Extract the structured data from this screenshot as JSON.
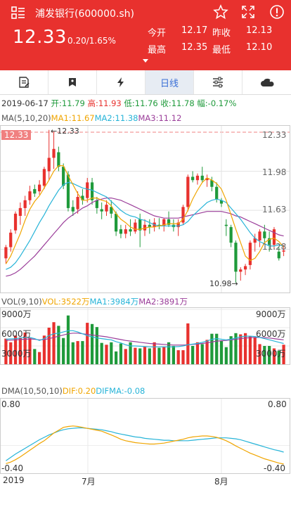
{
  "header": {
    "title": "浦发银行(600000.sh)",
    "price": "12.33",
    "change": "0.20/1.65%",
    "stats": [
      {
        "label": "今开",
        "value": "12.17"
      },
      {
        "label": "昨收",
        "value": "12.13"
      },
      {
        "label": "最高",
        "value": "12.35"
      },
      {
        "label": "最低",
        "value": "12.10"
      }
    ],
    "bg_color": "#e8312e"
  },
  "toolbar": {
    "tabs": [
      {
        "icon": "edit-note-icon",
        "label": ""
      },
      {
        "icon": "bookmark-icon",
        "label": ""
      },
      {
        "icon": "lightning-icon",
        "label": ""
      },
      {
        "icon": "",
        "label": "日线"
      },
      {
        "icon": "sliders-icon",
        "label": ""
      },
      {
        "icon": "cloud-icon",
        "label": ""
      }
    ],
    "active_label": "日线"
  },
  "info": {
    "date": "2019-06-17",
    "open": "开:11.79",
    "high": "高:11.93",
    "low": "低:11.76",
    "close": "收:11.78",
    "amp": "幅:-0.17%"
  },
  "ma": {
    "label": "MA(5,10,20)",
    "ma1": "MA1:11.67",
    "ma2": "MA2:11.38",
    "ma3": "MA3:11.12"
  },
  "price_axis": {
    "labels": [
      "12.33",
      "11.98",
      "11.63",
      "11.28"
    ],
    "current_tag": "12.33",
    "max_note": "←12.33",
    "min_note": "10.98→"
  },
  "vol": {
    "label": "VOL(9,10)",
    "vol": "VOL:3522万",
    "ma1": "MA1:3984万",
    "ma2": "MA2:3891万",
    "axis_right": [
      "9000万",
      "6000万",
      "3000万"
    ],
    "axis_left": [
      "9000万",
      "6000万",
      "3000万"
    ]
  },
  "dma": {
    "label": "DMA(10,50,10)",
    "dif": "DIF:0.20",
    "difma": "DIFMA:-0.08",
    "top": "0.80",
    "bottom": "-0.40"
  },
  "xaxis": [
    "2019",
    "7月",
    "8月"
  ],
  "chart_data": {
    "type": "candlestick",
    "ylim": [
      10.9,
      12.38
    ],
    "candles": [
      {
        "o": 11.2,
        "h": 11.32,
        "l": 11.15,
        "c": 11.3
      },
      {
        "o": 11.3,
        "h": 11.46,
        "l": 11.26,
        "c": 11.43
      },
      {
        "o": 11.45,
        "h": 11.62,
        "l": 11.42,
        "c": 11.6
      },
      {
        "o": 11.58,
        "h": 11.7,
        "l": 11.5,
        "c": 11.65
      },
      {
        "o": 11.65,
        "h": 11.76,
        "l": 11.58,
        "c": 11.72
      },
      {
        "o": 11.72,
        "h": 11.85,
        "l": 11.68,
        "c": 11.8
      },
      {
        "o": 11.82,
        "h": 11.86,
        "l": 11.75,
        "c": 11.78
      },
      {
        "o": 11.8,
        "h": 11.9,
        "l": 11.77,
        "c": 11.86
      },
      {
        "o": 11.85,
        "h": 12.02,
        "l": 11.82,
        "c": 12.0
      },
      {
        "o": 11.98,
        "h": 12.35,
        "l": 11.9,
        "c": 12.1
      },
      {
        "o": 12.1,
        "h": 12.33,
        "l": 12.0,
        "c": 12.18
      },
      {
        "o": 12.15,
        "h": 12.2,
        "l": 11.98,
        "c": 12.02
      },
      {
        "o": 12.02,
        "h": 12.05,
        "l": 11.82,
        "c": 11.85
      },
      {
        "o": 11.95,
        "h": 11.98,
        "l": 11.62,
        "c": 11.65
      },
      {
        "o": 11.66,
        "h": 11.72,
        "l": 11.58,
        "c": 11.62
      },
      {
        "o": 11.64,
        "h": 11.8,
        "l": 11.6,
        "c": 11.75
      },
      {
        "o": 11.76,
        "h": 11.82,
        "l": 11.68,
        "c": 11.72
      },
      {
        "o": 11.74,
        "h": 11.92,
        "l": 11.7,
        "c": 11.88
      },
      {
        "o": 11.88,
        "h": 11.92,
        "l": 11.68,
        "c": 11.72
      },
      {
        "o": 11.72,
        "h": 11.75,
        "l": 11.6,
        "c": 11.65
      },
      {
        "o": 11.64,
        "h": 11.7,
        "l": 11.55,
        "c": 11.62
      },
      {
        "o": 11.62,
        "h": 11.72,
        "l": 11.58,
        "c": 11.68
      },
      {
        "o": 11.66,
        "h": 11.72,
        "l": 11.56,
        "c": 11.6
      },
      {
        "o": 11.6,
        "h": 11.62,
        "l": 11.4,
        "c": 11.44
      },
      {
        "o": 11.46,
        "h": 11.5,
        "l": 11.38,
        "c": 11.42
      },
      {
        "o": 11.42,
        "h": 11.5,
        "l": 11.38,
        "c": 11.46
      },
      {
        "o": 11.46,
        "h": 11.55,
        "l": 11.4,
        "c": 11.44
      },
      {
        "o": 11.44,
        "h": 11.55,
        "l": 11.42,
        "c": 11.52
      },
      {
        "o": 11.55,
        "h": 11.6,
        "l": 11.3,
        "c": 11.45
      },
      {
        "o": 11.45,
        "h": 11.55,
        "l": 11.4,
        "c": 11.5
      },
      {
        "o": 11.5,
        "h": 11.55,
        "l": 11.42,
        "c": 11.48
      },
      {
        "o": 11.48,
        "h": 11.56,
        "l": 11.44,
        "c": 11.52
      },
      {
        "o": 11.5,
        "h": 11.56,
        "l": 11.46,
        "c": 11.49
      },
      {
        "o": 11.49,
        "h": 11.56,
        "l": 11.44,
        "c": 11.55
      },
      {
        "o": 11.55,
        "h": 11.62,
        "l": 11.48,
        "c": 11.5
      },
      {
        "o": 11.5,
        "h": 11.55,
        "l": 11.44,
        "c": 11.48
      },
      {
        "o": 11.48,
        "h": 11.55,
        "l": 11.4,
        "c": 11.52
      },
      {
        "o": 11.52,
        "h": 11.68,
        "l": 11.5,
        "c": 11.66
      },
      {
        "o": 11.66,
        "h": 11.95,
        "l": 11.62,
        "c": 11.93
      },
      {
        "o": 11.93,
        "h": 11.98,
        "l": 11.88,
        "c": 11.9
      },
      {
        "o": 11.9,
        "h": 11.96,
        "l": 11.86,
        "c": 11.94
      },
      {
        "o": 11.94,
        "h": 12.02,
        "l": 11.88,
        "c": 11.9
      },
      {
        "o": 11.9,
        "h": 11.95,
        "l": 11.84,
        "c": 11.92
      },
      {
        "o": 11.9,
        "h": 11.93,
        "l": 11.8,
        "c": 11.84
      },
      {
        "o": 11.84,
        "h": 11.88,
        "l": 11.7,
        "c": 11.73
      },
      {
        "o": 11.72,
        "h": 11.74,
        "l": 11.66,
        "c": 11.69
      },
      {
        "o": 11.5,
        "h": 11.55,
        "l": 11.4,
        "c": 11.49
      },
      {
        "o": 11.48,
        "h": 11.5,
        "l": 11.3,
        "c": 11.34
      },
      {
        "o": 11.34,
        "h": 11.36,
        "l": 10.98,
        "c": 11.08
      },
      {
        "o": 11.08,
        "h": 11.12,
        "l": 11.0,
        "c": 11.1
      },
      {
        "o": 11.1,
        "h": 11.15,
        "l": 11.05,
        "c": 11.13
      },
      {
        "o": 11.14,
        "h": 11.36,
        "l": 11.1,
        "c": 11.34
      },
      {
        "o": 11.34,
        "h": 11.42,
        "l": 11.26,
        "c": 11.38
      },
      {
        "o": 11.36,
        "h": 11.46,
        "l": 11.3,
        "c": 11.44
      },
      {
        "o": 11.44,
        "h": 11.5,
        "l": 11.34,
        "c": 11.38
      },
      {
        "o": 11.38,
        "h": 11.44,
        "l": 11.26,
        "c": 11.32
      },
      {
        "o": 11.32,
        "h": 11.48,
        "l": 11.28,
        "c": 11.46
      },
      {
        "o": 11.26,
        "h": 11.3,
        "l": 11.18,
        "c": 11.2
      },
      {
        "o": 11.26,
        "h": 11.32,
        "l": 11.22,
        "c": 11.27
      }
    ],
    "ma1": [
      11.15,
      11.22,
      11.32,
      11.42,
      11.54,
      11.64,
      11.71,
      11.76,
      11.83,
      11.9,
      11.98,
      12.03,
      12.03,
      11.94,
      11.86,
      11.78,
      11.72,
      11.72,
      11.74,
      11.74,
      11.72,
      11.71,
      11.67,
      11.6,
      11.55,
      11.52,
      11.48,
      11.46,
      11.46,
      11.47,
      11.48,
      11.48,
      11.49,
      11.5,
      11.51,
      11.51,
      11.51,
      11.55,
      11.63,
      11.73,
      11.81,
      11.88,
      11.92,
      11.9,
      11.87,
      11.82,
      11.72,
      11.59,
      11.46,
      11.34,
      11.22,
      11.18,
      11.2,
      11.26,
      11.34,
      11.37,
      11.38,
      11.35,
      11.3
    ],
    "ma2": [
      11.1,
      11.12,
      11.16,
      11.22,
      11.29,
      11.36,
      11.44,
      11.52,
      11.59,
      11.67,
      11.74,
      11.81,
      11.86,
      11.88,
      11.87,
      11.85,
      11.83,
      11.82,
      11.81,
      11.79,
      11.77,
      11.75,
      11.71,
      11.67,
      11.63,
      11.6,
      11.58,
      11.57,
      11.55,
      11.54,
      11.52,
      11.5,
      11.49,
      11.49,
      11.49,
      11.49,
      11.49,
      11.5,
      11.53,
      11.58,
      11.62,
      11.66,
      11.7,
      11.72,
      11.73,
      11.72,
      11.7,
      11.65,
      11.6,
      11.55,
      11.49,
      11.43,
      11.38,
      11.35,
      11.33,
      11.31,
      11.31,
      11.32,
      11.31
    ],
    "ma3": [
      11.04,
      11.05,
      11.07,
      11.1,
      11.14,
      11.18,
      11.22,
      11.27,
      11.32,
      11.37,
      11.42,
      11.47,
      11.52,
      11.56,
      11.59,
      11.62,
      11.65,
      11.67,
      11.7,
      11.72,
      11.73,
      11.74,
      11.74,
      11.73,
      11.72,
      11.7,
      11.68,
      11.66,
      11.64,
      11.62,
      11.6,
      11.58,
      11.57,
      11.56,
      11.56,
      11.56,
      11.56,
      11.57,
      11.58,
      11.59,
      11.6,
      11.61,
      11.62,
      11.62,
      11.62,
      11.62,
      11.61,
      11.6,
      11.58,
      11.57,
      11.55,
      11.53,
      11.51,
      11.49,
      11.47,
      11.45,
      11.43,
      11.41,
      11.4
    ],
    "volume": [
      4200,
      3600,
      4700,
      4400,
      5200,
      4300,
      2500,
      2000,
      4700,
      6000,
      6900,
      6300,
      4300,
      8000,
      3600,
      3800,
      3800,
      6800,
      6600,
      6100,
      3500,
      3200,
      3600,
      2100,
      3400,
      2500,
      3600,
      2700,
      2600,
      2900,
      2600,
      3600,
      2700,
      2900,
      3600,
      3000,
      2300,
      2300,
      6700,
      3000,
      3600,
      3300,
      4000,
      5000,
      5000,
      3800,
      2800,
      4600,
      5100,
      4900,
      5100,
      4600,
      4400,
      3300,
      3000,
      3000,
      2600,
      2200,
      3200
    ],
    "vol_ma1": [
      4100,
      4150,
      4200,
      4300,
      4400,
      4400,
      4200,
      3900,
      4200,
      4700,
      5000,
      5100,
      5300,
      5500,
      5500,
      5300,
      5000,
      4700,
      4500,
      4300,
      4200,
      4100,
      4000,
      3700,
      3500,
      3200,
      3000,
      3000,
      2950,
      2900,
      2850,
      2850,
      2850,
      2850,
      2850,
      2850,
      2900,
      3000,
      3200,
      3300,
      3400,
      3600,
      3800,
      4100,
      4200,
      4100,
      4000,
      4100,
      4300,
      4500,
      4600,
      4600,
      4550,
      4400,
      4200,
      4000,
      3800,
      3600,
      3400
    ],
    "vol_ma2": [
      3900,
      3950,
      4000,
      4050,
      4100,
      4150,
      4100,
      4000,
      4050,
      4200,
      4400,
      4600,
      4800,
      5000,
      5100,
      5100,
      5000,
      4900,
      4800,
      4700,
      4600,
      4500,
      4350,
      4200,
      4050,
      3900,
      3800,
      3700,
      3600,
      3500,
      3400,
      3350,
      3300,
      3250,
      3200,
      3150,
      3150,
      3150,
      3200,
      3250,
      3300,
      3400,
      3500,
      3650,
      3800,
      3850,
      3900,
      4000,
      4100,
      4200,
      4300,
      4350,
      4400,
      4400,
      4350,
      4300,
      4200,
      4100,
      4000
    ],
    "dif": [
      -0.38,
      -0.35,
      -0.3,
      -0.24,
      -0.17,
      -0.1,
      -0.03,
      0.04,
      0.1,
      0.18,
      0.26,
      0.32,
      0.38,
      0.4,
      0.41,
      0.4,
      0.38,
      0.36,
      0.34,
      0.32,
      0.3,
      0.26,
      0.22,
      0.18,
      0.13,
      0.1,
      0.08,
      0.06,
      0.05,
      0.04,
      0.03,
      0.03,
      0.04,
      0.05,
      0.07,
      0.09,
      0.11,
      0.13,
      0.16,
      0.18,
      0.19,
      0.2,
      0.2,
      0.19,
      0.17,
      0.14,
      0.1,
      0.05,
      -0.01,
      -0.06,
      -0.11,
      -0.16,
      -0.2,
      -0.24,
      -0.28,
      -0.31,
      -0.34,
      -0.37,
      -0.39
    ],
    "difma": [
      -0.32,
      -0.25,
      -0.18,
      -0.12,
      -0.06,
      0.0,
      0.06,
      0.12,
      0.17,
      0.22,
      0.26,
      0.3,
      0.33,
      0.35,
      0.36,
      0.37,
      0.37,
      0.36,
      0.35,
      0.34,
      0.33,
      0.31,
      0.29,
      0.26,
      0.24,
      0.22,
      0.2,
      0.18,
      0.17,
      0.15,
      0.14,
      0.13,
      0.12,
      0.11,
      0.11,
      0.1,
      0.1,
      0.1,
      0.1,
      0.11,
      0.12,
      0.13,
      0.14,
      0.15,
      0.16,
      0.16,
      0.16,
      0.15,
      0.14,
      0.12,
      0.09,
      0.06,
      0.03,
      0.0,
      -0.03,
      -0.06,
      -0.09,
      -0.11,
      -0.14
    ],
    "dma_ylim": [
      -0.45,
      0.85
    ],
    "colors": {
      "up": "#e8312e",
      "down": "#1f9a3b",
      "ma1": "#f0a500",
      "ma2": "#27b4d8",
      "ma3": "#9b3e9a",
      "dif": "#f0a500",
      "difma": "#27b4d8"
    }
  }
}
